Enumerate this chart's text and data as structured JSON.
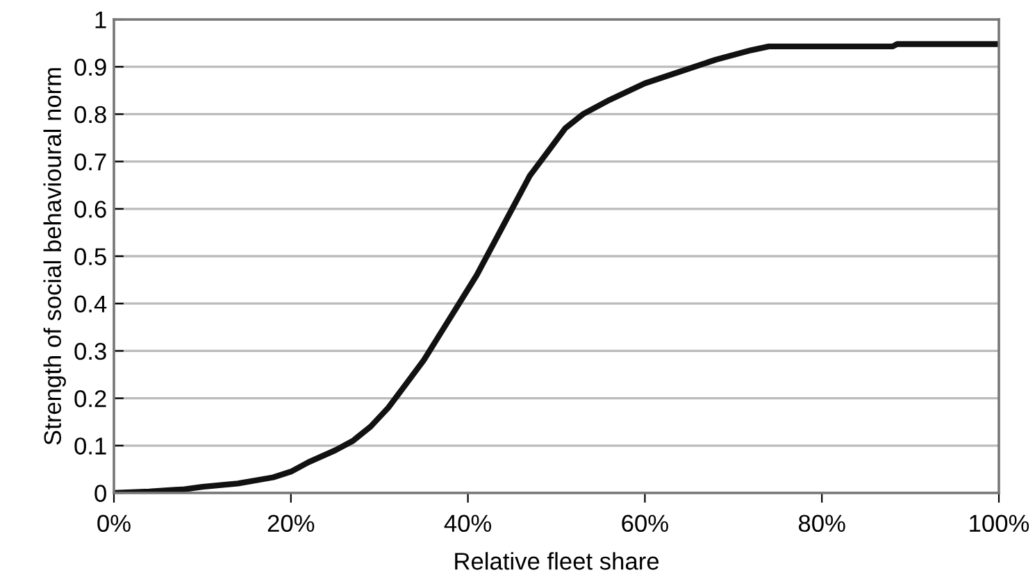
{
  "chart_data": {
    "type": "line",
    "xlabel": "Relative fleet share",
    "ylabel": "Strength of social behavioural norm",
    "x": [
      0,
      0.04,
      0.08,
      0.1,
      0.14,
      0.18,
      0.2,
      0.22,
      0.25,
      0.27,
      0.29,
      0.31,
      0.33,
      0.35,
      0.37,
      0.39,
      0.41,
      0.43,
      0.45,
      0.47,
      0.49,
      0.51,
      0.53,
      0.56,
      0.6,
      0.64,
      0.68,
      0.72,
      0.74,
      0.88,
      0.885,
      1.0
    ],
    "series": [
      {
        "color": "#111111",
        "values": [
          0,
          0.003,
          0.008,
          0.013,
          0.02,
          0.033,
          0.045,
          0.065,
          0.09,
          0.11,
          0.14,
          0.18,
          0.23,
          0.28,
          0.34,
          0.4,
          0.46,
          0.53,
          0.6,
          0.67,
          0.72,
          0.77,
          0.8,
          0.83,
          0.865,
          0.89,
          0.915,
          0.935,
          0.943,
          0.943,
          0.948,
          0.948
        ]
      }
    ],
    "xlim": [
      0,
      1
    ],
    "ylim": [
      0,
      1
    ],
    "xticks": [
      {
        "value": 0,
        "label": "0%"
      },
      {
        "value": 0.2,
        "label": "20%"
      },
      {
        "value": 0.4,
        "label": "40%"
      },
      {
        "value": 0.6,
        "label": "60%"
      },
      {
        "value": 0.8,
        "label": "80%"
      },
      {
        "value": 1,
        "label": "100%"
      }
    ],
    "yticks": [
      0,
      0.1,
      0.2,
      0.3,
      0.4,
      0.5,
      0.6,
      0.7,
      0.8,
      0.9,
      1
    ],
    "grid": "y",
    "legend": false,
    "marker": "none",
    "line_style": "solid"
  }
}
